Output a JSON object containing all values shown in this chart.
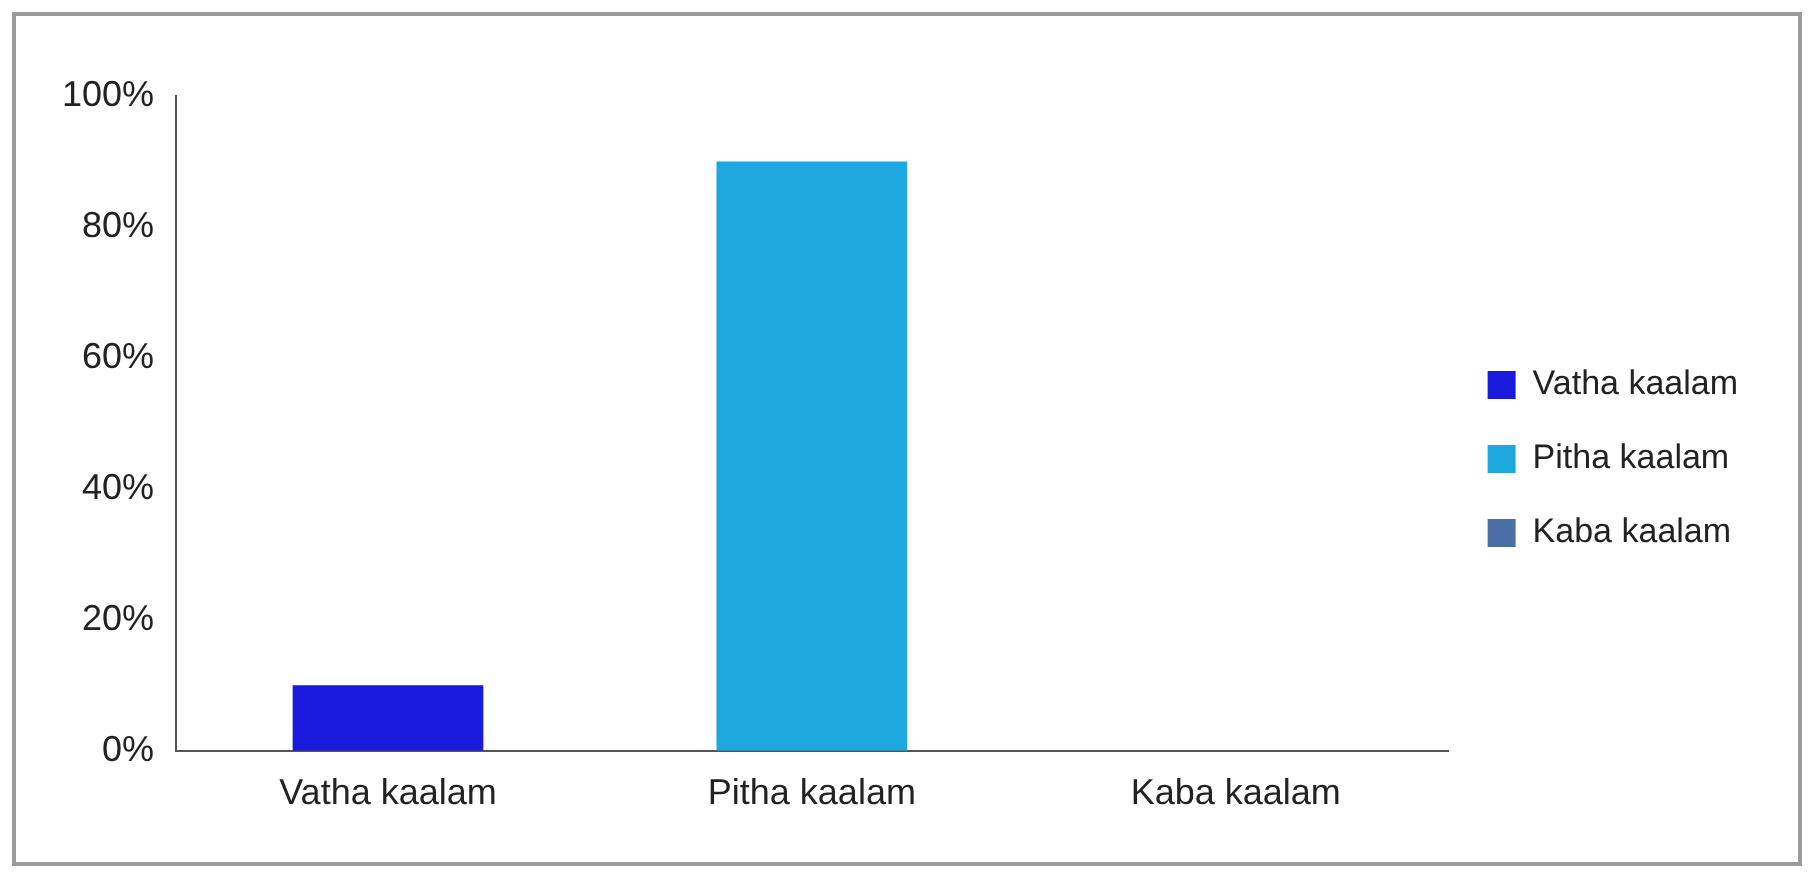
{
  "chart_data": {
    "type": "bar",
    "categories": [
      "Vatha kaalam",
      "Pitha kaalam",
      "Kaba kaalam"
    ],
    "series": [
      {
        "name": "Vatha kaalam",
        "color": "#1a1adc",
        "values": [
          10,
          null,
          null
        ]
      },
      {
        "name": "Pitha kaalam",
        "color": "#1ea8e0",
        "values": [
          null,
          90,
          null
        ]
      },
      {
        "name": "Kaba kaalam",
        "color": "#4a6fa5",
        "values": [
          null,
          null,
          0
        ]
      }
    ],
    "stacked": true,
    "ylim": [
      0,
      100
    ],
    "yticks": [
      {
        "value": 0,
        "label": "0%"
      },
      {
        "value": 20,
        "label": "20%"
      },
      {
        "value": 40,
        "label": "40%"
      },
      {
        "value": 60,
        "label": "60%"
      },
      {
        "value": 80,
        "label": "80%"
      },
      {
        "value": 100,
        "label": "100%"
      }
    ],
    "grid": false,
    "legend": "right"
  }
}
